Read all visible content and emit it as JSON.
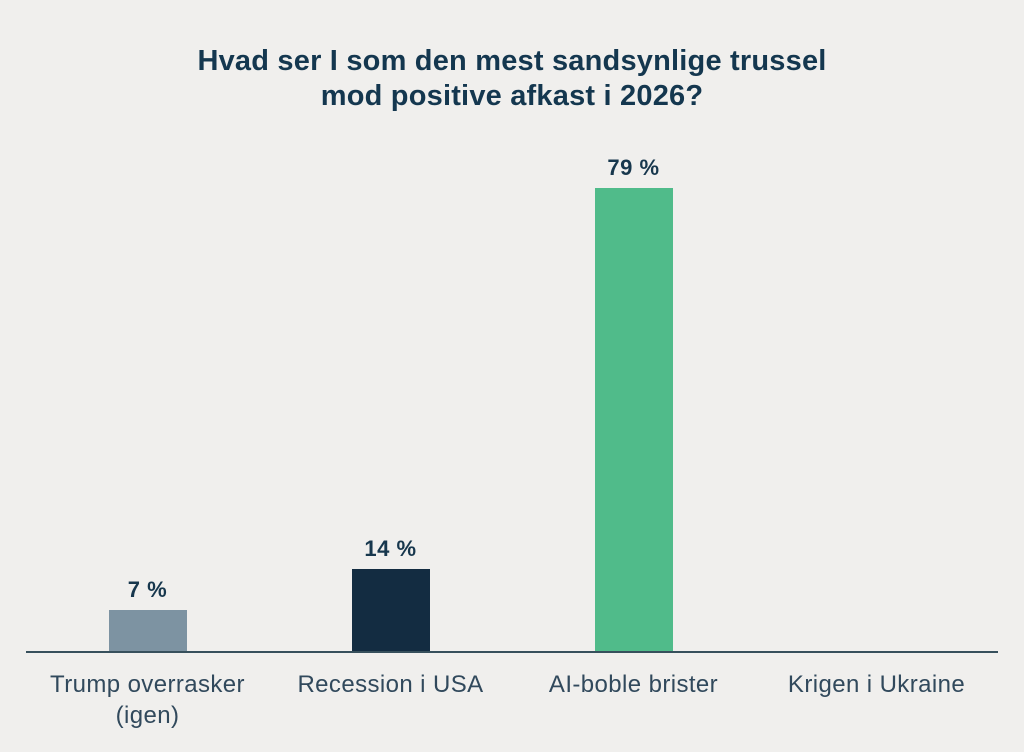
{
  "page": {
    "background_color": "#F0EFED"
  },
  "chart_data": {
    "type": "bar",
    "title": "Hvad ser I som den mest sandsynlige trussel\nmod positive afkast i 2026?",
    "categories": [
      "Trump overrasker (igen)",
      "Recession i USA",
      "AI-boble brister",
      "Krigen i Ukraine"
    ],
    "values": [
      7,
      14,
      79,
      0
    ],
    "value_labels": [
      "7 %",
      "14 %",
      "79 %",
      ""
    ],
    "unit": "%",
    "bar_colors": [
      "#7D93A2",
      "#132C41",
      "#50BB8A",
      null
    ],
    "xlabel": "",
    "ylabel": "",
    "ylim": [
      0,
      85
    ],
    "grid": false,
    "legend": false,
    "value_labels_position": "above-bar",
    "title_color": "#14374F",
    "value_label_color": "#17374D",
    "category_label_color": "#31495C",
    "axis_line_color": "#37505C"
  }
}
